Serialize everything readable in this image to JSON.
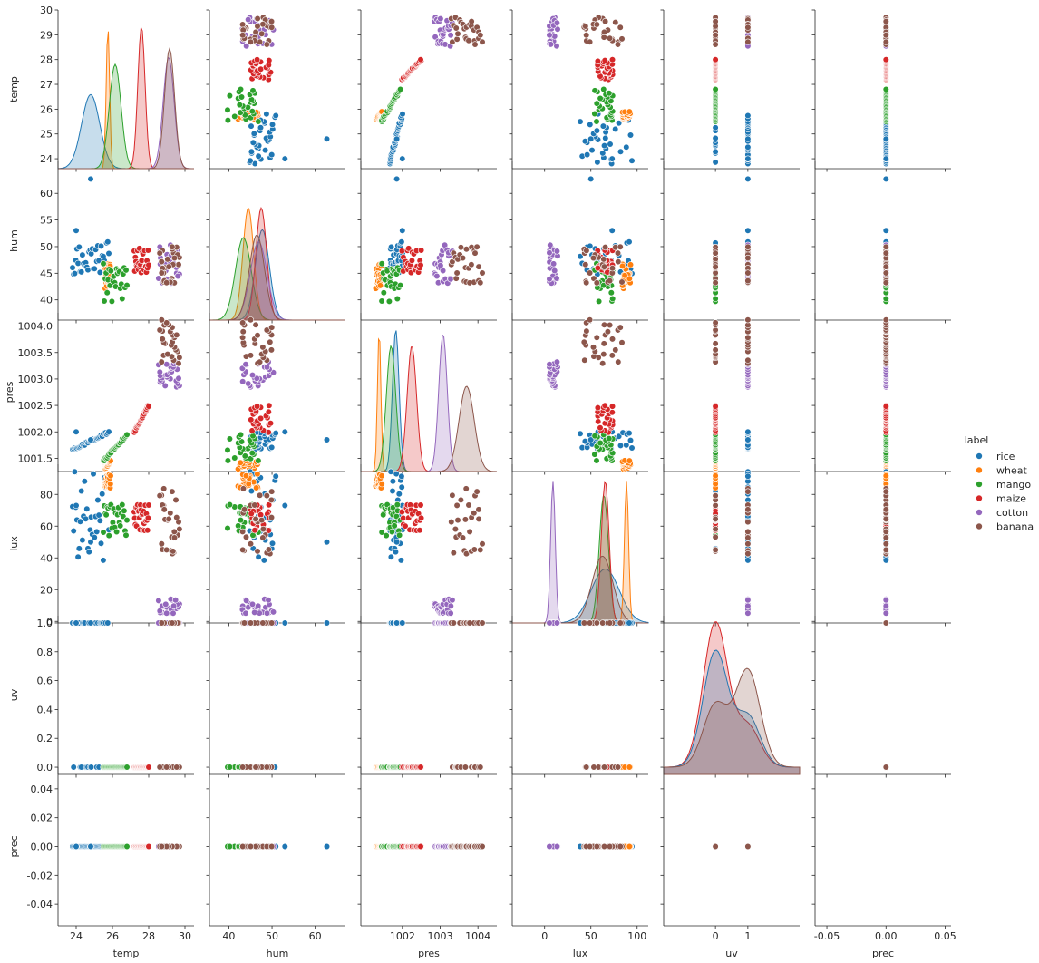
{
  "chart_data": {
    "type": "scatter",
    "subtype": "pairplot",
    "variables": [
      "temp",
      "hum",
      "pres",
      "lux",
      "uv",
      "prec"
    ],
    "diagonal": "kde",
    "legend": {
      "title": "label",
      "position": "right",
      "entries": [
        {
          "name": "rice",
          "color": "#1f77b4"
        },
        {
          "name": "wheat",
          "color": "#ff7f0e"
        },
        {
          "name": "mango",
          "color": "#2ca02c"
        },
        {
          "name": "maize",
          "color": "#d62728"
        },
        {
          "name": "cotton",
          "color": "#9467bd"
        },
        {
          "name": "banana",
          "color": "#8c564b"
        }
      ]
    },
    "axes": {
      "temp": {
        "range": [
          23.6,
          30.0
        ],
        "ticks": [
          24,
          25,
          26,
          27,
          28,
          29,
          30
        ],
        "tick_labels": [
          "24",
          "25",
          "26",
          "27",
          "28",
          "29",
          "30"
        ],
        "label": "temp"
      },
      "hum": {
        "range": [
          36.2,
          66.0
        ],
        "ticks": [
          40,
          45,
          50,
          55,
          60
        ],
        "tick_labels": [
          "40",
          "45",
          "50",
          "55",
          "60"
        ],
        "label": "hum"
      },
      "pres": {
        "range": [
          1001.25,
          1004.25
        ],
        "ticks": [
          1001.5,
          1002.0,
          1002.5,
          1003.0,
          1003.5,
          1004.0
        ],
        "tick_labels": [
          "1001.5",
          "1002.0",
          "1002.5",
          "1003.0",
          "1003.5",
          "1004.0"
        ],
        "label": "pres"
      },
      "lux": {
        "range": [
          -1,
          99
        ],
        "ticks": [
          0,
          20,
          40,
          60,
          80
        ],
        "tick_labels": [
          "0",
          "20",
          "40",
          "60",
          "80"
        ],
        "label": "lux"
      },
      "uv": {
        "range": [
          -0.05,
          1.05
        ],
        "ticks": [
          0.0,
          0.2,
          0.4,
          0.6,
          0.8,
          1.0
        ],
        "tick_labels": [
          "0.0",
          "0.2",
          "0.4",
          "0.6",
          "0.8",
          "1.0"
        ],
        "label": "uv"
      },
      "prec": {
        "range": [
          -0.055,
          0.055
        ],
        "ticks": [
          -0.04,
          -0.02,
          0.0,
          0.02,
          0.04
        ],
        "tick_labels": [
          "-0.04",
          "-0.02",
          "0.00",
          "0.02",
          "0.04"
        ],
        "label": "prec"
      }
    },
    "x_axes": {
      "temp": {
        "range": [
          23.0,
          30.5
        ],
        "ticks": [
          24,
          26,
          28,
          30
        ],
        "tick_labels": [
          "24",
          "26",
          "28",
          "30"
        ],
        "label": "temp"
      },
      "hum": {
        "range": [
          35.5,
          67.0
        ],
        "ticks": [
          40,
          50,
          60
        ],
        "tick_labels": [
          "40",
          "50",
          "60"
        ],
        "label": "hum"
      },
      "pres": {
        "range": [
          1000.9,
          1004.5
        ],
        "ticks": [
          1002,
          1003,
          1004
        ],
        "tick_labels": [
          "1002",
          "1003",
          "1004"
        ],
        "label": "pres"
      },
      "lux": {
        "range": [
          -35,
          112
        ],
        "ticks": [
          0,
          50,
          100
        ],
        "tick_labels": [
          "0",
          "50",
          "100"
        ],
        "label": "lux"
      },
      "uv": {
        "range": [
          -1.6,
          2.6
        ],
        "ticks": [
          0,
          1
        ],
        "tick_labels": [
          "0",
          "1"
        ],
        "label": "uv"
      },
      "prec": {
        "range": [
          -0.06,
          0.055
        ],
        "ticks": [
          -0.05,
          0.0,
          0.05
        ],
        "tick_labels": [
          "-0.05",
          "0.00",
          "0.05"
        ],
        "label": "prec"
      }
    },
    "groups": {
      "rice": {
        "temp": [
          23.8,
          25.8
        ],
        "hum": [
          44.5,
          51.0
        ],
        "pres": [
          1001.65,
          1002.0
        ],
        "lux": [
          35,
          96
        ],
        "uv": [
          0,
          1
        ],
        "outliers": [
          {
            "temp": 24.8,
            "hum": 62.7,
            "pres": 1001.85,
            "lux": 50,
            "uv": 1
          },
          {
            "temp": 24.0,
            "hum": 53.0,
            "pres": 1002.0,
            "lux": 73,
            "uv": 1
          }
        ]
      },
      "wheat": {
        "temp": [
          25.6,
          25.9
        ],
        "hum": [
          42.0,
          47.0
        ],
        "pres": [
          1001.32,
          1001.45
        ],
        "lux": [
          84,
          93
        ],
        "uv": [
          0
        ]
      },
      "mango": {
        "temp": [
          25.5,
          26.8
        ],
        "hum": [
          39.7,
          47.0
        ],
        "pres": [
          1001.45,
          1001.95
        ],
        "lux": [
          54,
          74
        ],
        "uv": [
          0
        ]
      },
      "maize": {
        "temp": [
          27.2,
          28.0
        ],
        "hum": [
          45.0,
          50.0
        ],
        "pres": [
          1002.0,
          1002.5
        ],
        "lux": [
          57,
          74
        ],
        "uv": [
          0
        ]
      },
      "cotton": {
        "temp": [
          28.5,
          29.7
        ],
        "hum": [
          43.0,
          50.8
        ],
        "pres": [
          1002.85,
          1003.3
        ],
        "lux": [
          4,
          14
        ],
        "uv": [
          1
        ]
      },
      "banana": {
        "temp": [
          28.6,
          29.7
        ],
        "hum": [
          43.0,
          50.0
        ],
        "pres": [
          1003.3,
          1004.1
        ],
        "lux": [
          40,
          85
        ],
        "uv": [
          0,
          1
        ]
      }
    },
    "uv_density": {
      "x": [
        0,
        1
      ],
      "series": [
        {
          "name": "maize",
          "peaks": [
            1.0,
            0.28
          ]
        },
        {
          "name": "rice",
          "peaks": [
            0.8,
            0.35
          ]
        },
        {
          "name": "banana",
          "peaks": [
            0.43,
            0.67
          ]
        }
      ]
    },
    "prec_value": 0.0
  }
}
